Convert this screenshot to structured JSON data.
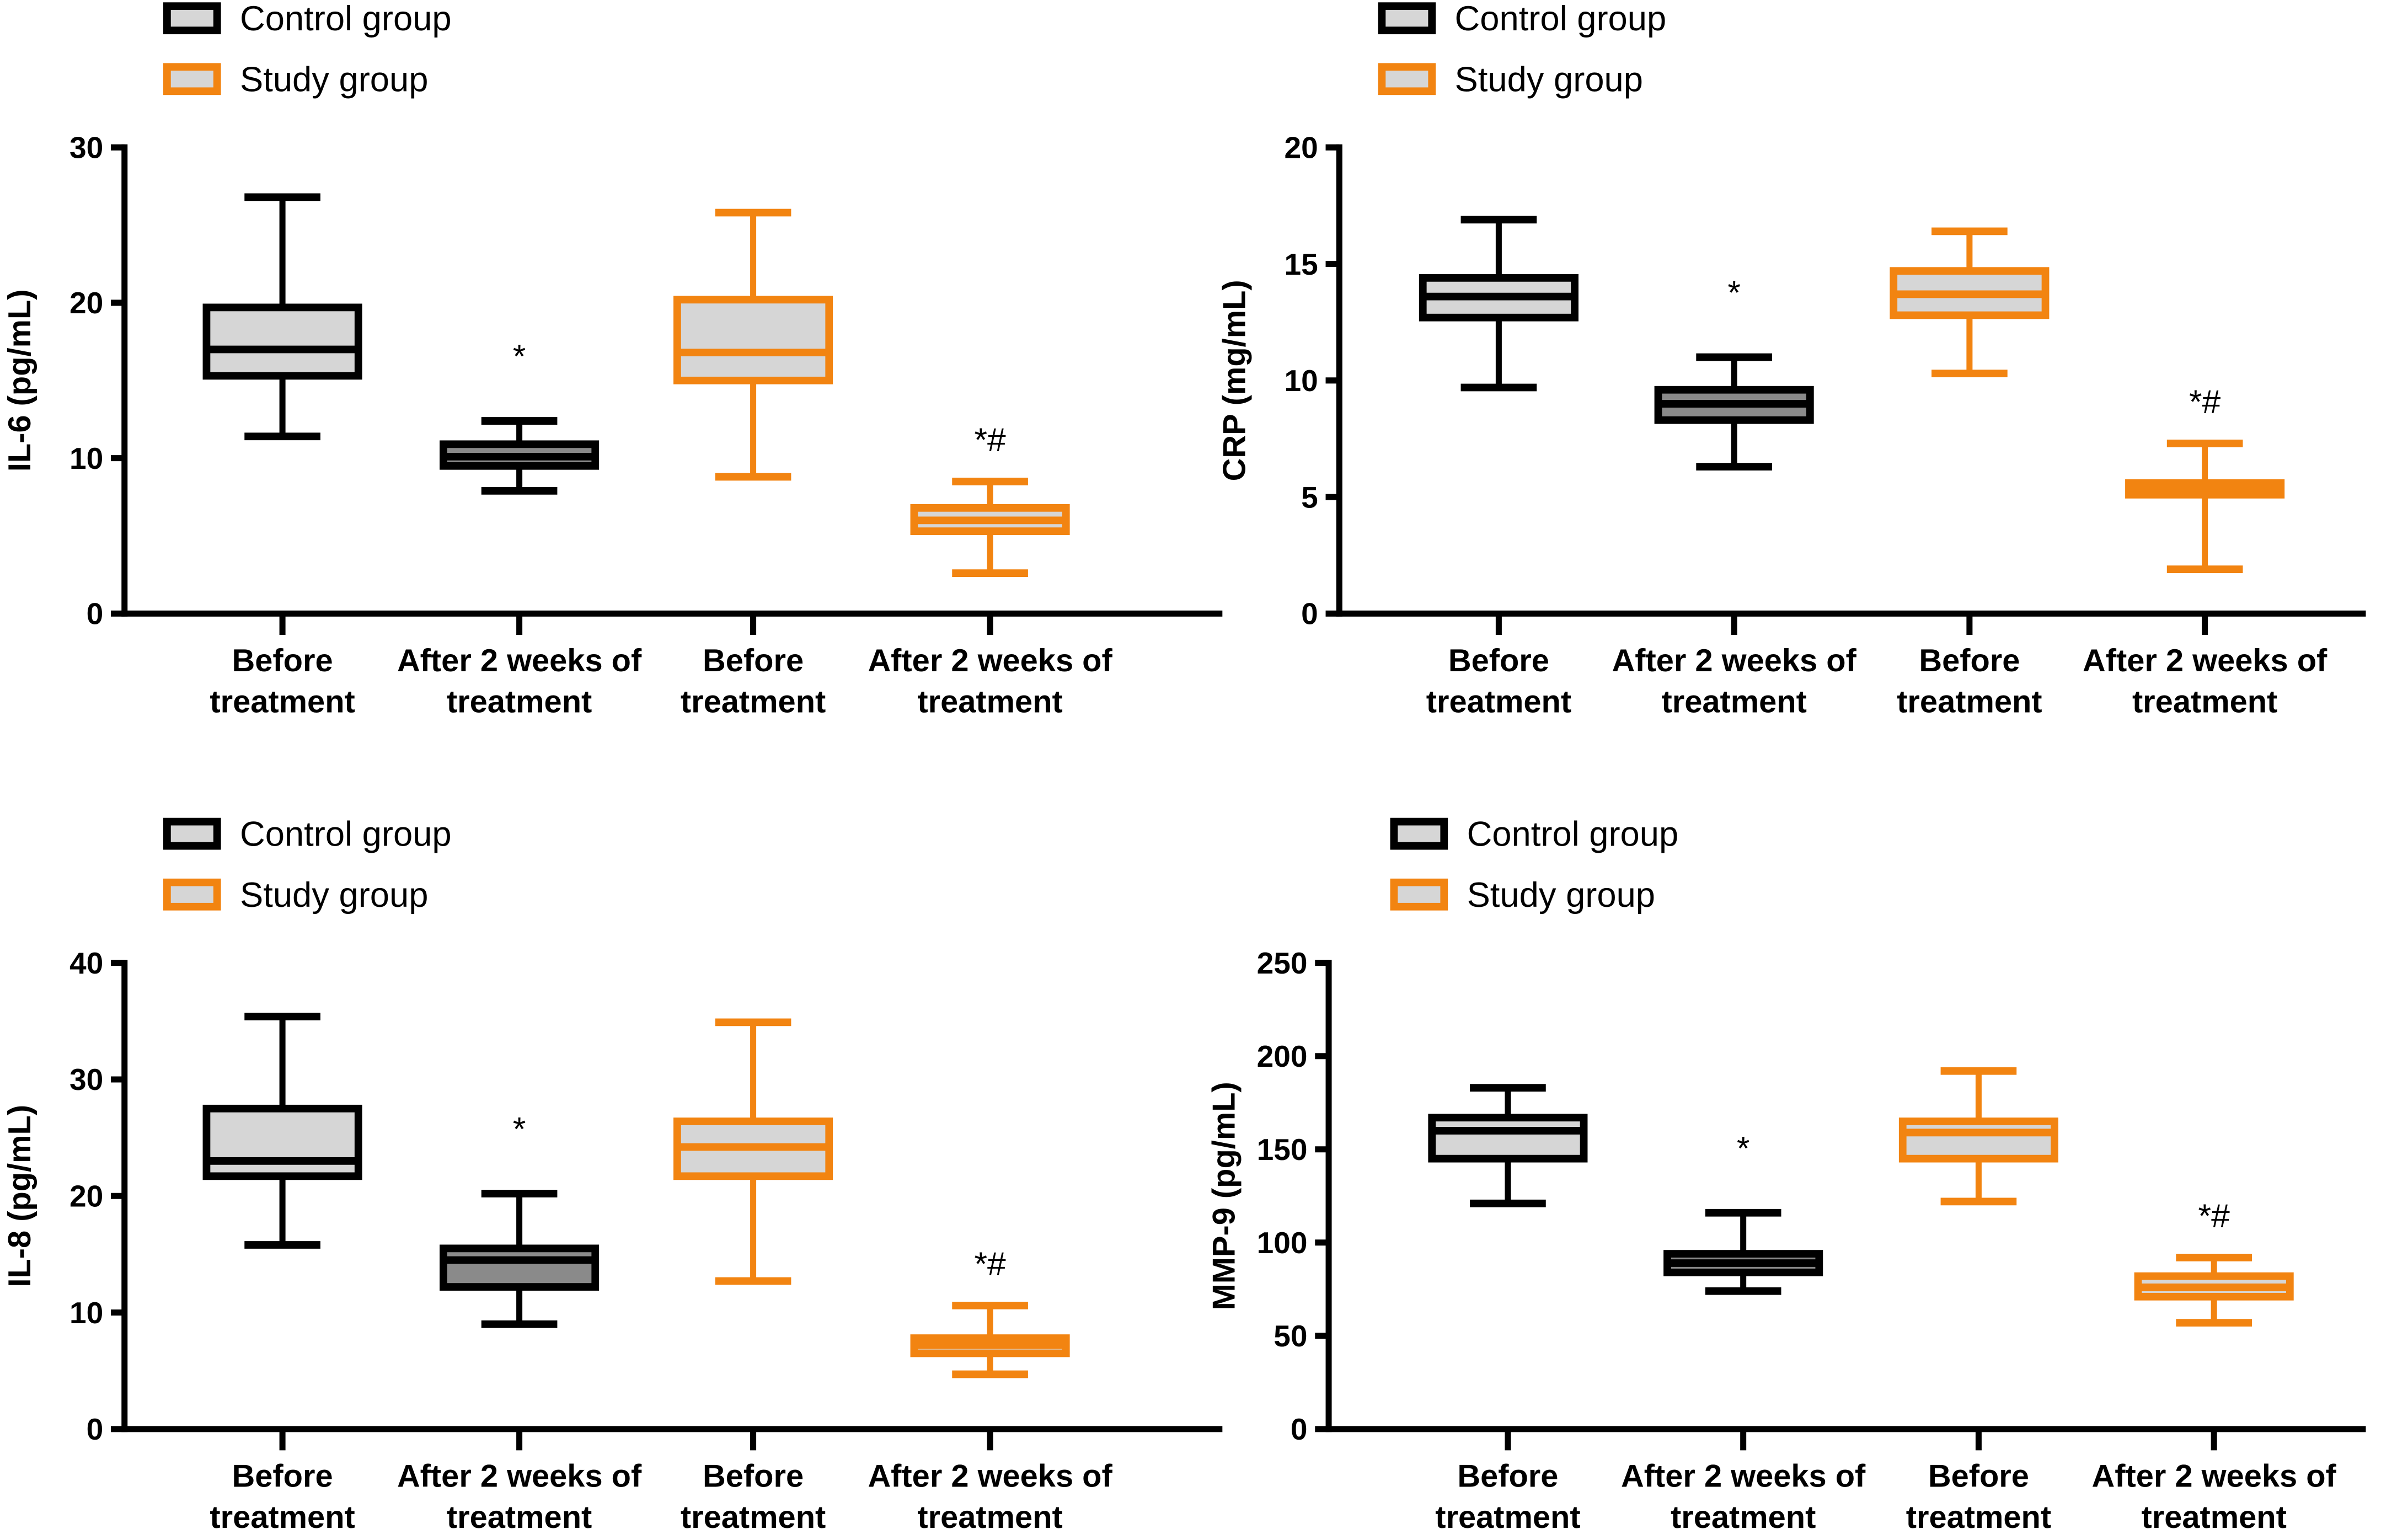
{
  "colors": {
    "control": "#000000",
    "study": "#f28411",
    "fill": "#d6d6d6",
    "fill_dark": "#8a8a8a"
  },
  "chart_data": [
    {
      "type": "boxplot",
      "ylabel": "IL-6 (pg/mL)",
      "ylim": [
        0,
        30
      ],
      "yticks": [
        0,
        10,
        20,
        30
      ],
      "legend": [
        "Control group",
        "Study group"
      ],
      "legend_placement": "top-left",
      "categories": [
        "Before treatment",
        "After 2 weeks of treatment",
        "Before treatment",
        "After 2 weeks of treatment"
      ],
      "series": [
        {
          "name": "Control group",
          "boxes": [
            {
              "min": 11.4,
              "q1": 15.3,
              "median": 17.0,
              "q3": 19.7,
              "max": 26.8,
              "annotation": ""
            },
            {
              "min": 7.9,
              "q1": 9.5,
              "median": 10.1,
              "q3": 10.9,
              "max": 12.4,
              "annotation": "*"
            }
          ]
        },
        {
          "name": "Study group",
          "boxes": [
            {
              "min": 8.8,
              "q1": 15.0,
              "median": 16.8,
              "q3": 20.2,
              "max": 25.8,
              "annotation": ""
            },
            {
              "min": 2.6,
              "q1": 5.3,
              "median": 6.0,
              "q3": 6.8,
              "max": 8.5,
              "annotation": "*#"
            }
          ]
        }
      ]
    },
    {
      "type": "boxplot",
      "ylabel": "CRP (mg/mL)",
      "ylim": [
        0,
        20
      ],
      "yticks": [
        0,
        5,
        10,
        15,
        20
      ],
      "legend": [
        "Control group",
        "Study group"
      ],
      "legend_placement": "top-left",
      "categories": [
        "Before treatment",
        "After 2 weeks of treatment",
        "Before treatment",
        "After 2 weeks of treatment"
      ],
      "series": [
        {
          "name": "Control group",
          "boxes": [
            {
              "min": 9.7,
              "q1": 12.7,
              "median": 13.6,
              "q3": 14.4,
              "max": 16.9,
              "annotation": ""
            },
            {
              "min": 6.3,
              "q1": 8.3,
              "median": 9.0,
              "q3": 9.6,
              "max": 11.0,
              "annotation": "*"
            }
          ]
        },
        {
          "name": "Study group",
          "boxes": [
            {
              "min": 10.3,
              "q1": 12.8,
              "median": 13.7,
              "q3": 14.7,
              "max": 16.4,
              "annotation": ""
            },
            {
              "min": 1.9,
              "q1": 5.1,
              "median": 5.4,
              "q3": 5.6,
              "max": 7.3,
              "annotation": "*#"
            }
          ]
        }
      ]
    },
    {
      "type": "boxplot",
      "ylabel": "IL-8 (pg/mL)",
      "ylim": [
        0,
        40
      ],
      "yticks": [
        0,
        10,
        20,
        30,
        40
      ],
      "legend": [
        "Control group",
        "Study group"
      ],
      "legend_placement": "top-left",
      "categories": [
        "Before treatment",
        "After 2 weeks of treatment",
        "Before treatment",
        "After 2 weeks of treatment"
      ],
      "series": [
        {
          "name": "Control group",
          "boxes": [
            {
              "min": 15.8,
              "q1": 21.7,
              "median": 23.0,
              "q3": 27.5,
              "max": 35.4,
              "annotation": ""
            },
            {
              "min": 9.0,
              "q1": 12.2,
              "median": 14.5,
              "q3": 15.5,
              "max": 20.2,
              "annotation": "*"
            }
          ]
        },
        {
          "name": "Study group",
          "boxes": [
            {
              "min": 12.7,
              "q1": 21.7,
              "median": 24.2,
              "q3": 26.4,
              "max": 34.9,
              "annotation": ""
            },
            {
              "min": 4.7,
              "q1": 6.5,
              "median": 7.2,
              "q3": 7.8,
              "max": 10.6,
              "annotation": "*#"
            }
          ]
        }
      ]
    },
    {
      "type": "boxplot",
      "ylabel": "MMP-9 (pg/mL)",
      "ylim": [
        0,
        250
      ],
      "yticks": [
        0,
        50,
        100,
        150,
        200,
        250
      ],
      "legend": [
        "Control group",
        "Study group"
      ],
      "legend_placement": "top-left",
      "categories": [
        "Before treatment",
        "After 2 weeks of treatment",
        "Before treatment",
        "After 2 weeks of treatment"
      ],
      "series": [
        {
          "name": "Control group",
          "boxes": [
            {
              "min": 121,
              "q1": 145,
              "median": 160,
              "q3": 167,
              "max": 183,
              "annotation": ""
            },
            {
              "min": 74,
              "q1": 84,
              "median": 89,
              "q3": 94,
              "max": 116,
              "annotation": "*"
            }
          ]
        },
        {
          "name": "Study group",
          "boxes": [
            {
              "min": 122,
              "q1": 145,
              "median": 159,
              "q3": 165,
              "max": 192,
              "annotation": ""
            },
            {
              "min": 57,
              "q1": 71,
              "median": 76,
              "q3": 82,
              "max": 92,
              "annotation": "*#"
            }
          ]
        }
      ]
    }
  ]
}
